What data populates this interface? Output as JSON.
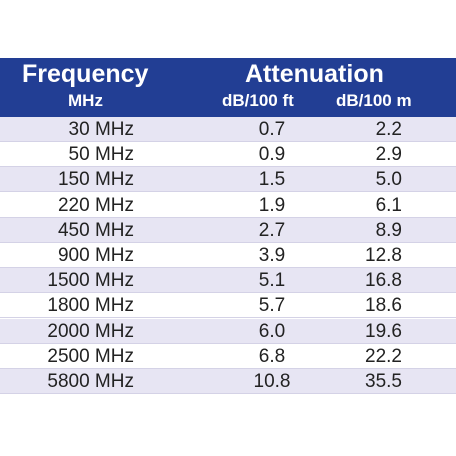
{
  "header": {
    "frequency": "Frequency",
    "frequency_unit": "MHz",
    "attenuation": "Attenuation",
    "col_ft": "dB/100 ft",
    "col_m": "dB/100 m"
  },
  "table": {
    "rows": [
      [
        "30 MHz",
        "0.7",
        "2.2"
      ],
      [
        "50 MHz",
        "0.9",
        "2.9"
      ],
      [
        "150 MHz",
        "1.5",
        "5.0"
      ],
      [
        "220 MHz",
        "1.9",
        "6.1"
      ],
      [
        "450 MHz",
        "2.7",
        "8.9"
      ],
      [
        "900 MHz",
        "3.9",
        "12.8"
      ],
      [
        "1500 MHz",
        "5.1",
        "16.8"
      ],
      [
        "1800 MHz",
        "5.7",
        "18.6"
      ],
      [
        "2000 MHz",
        "6.0",
        "19.6"
      ],
      [
        "2500 MHz",
        "6.8",
        "22.2"
      ],
      [
        "5800 MHz",
        "10.8",
        "35.5"
      ]
    ]
  }
}
